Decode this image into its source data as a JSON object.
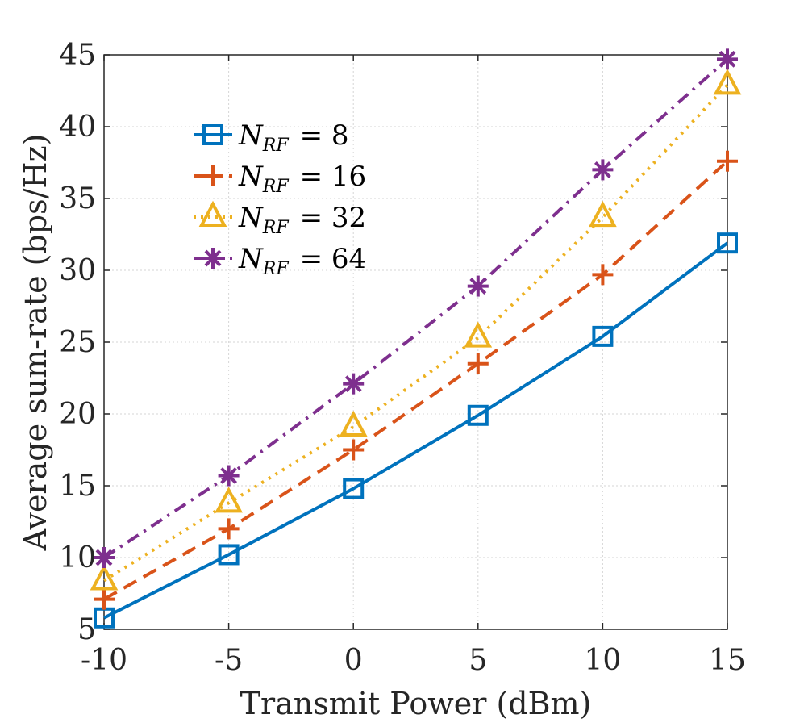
{
  "chart_data": {
    "type": "line",
    "xlabel": "Transmit Power (dBm)",
    "ylabel": "Average sum-rate (bps/Hz)",
    "x": [
      -10,
      -5,
      0,
      5,
      10,
      15
    ],
    "xlim": [
      -10,
      15
    ],
    "ylim": [
      5,
      45
    ],
    "xticks": [
      "-10",
      "-5",
      "0",
      "5",
      "10",
      "15"
    ],
    "yticks": [
      "5",
      "10",
      "15",
      "20",
      "25",
      "30",
      "35",
      "40",
      "45"
    ],
    "grid": true,
    "legend_position": "top-left",
    "series": [
      {
        "name": "N_RF = 8",
        "symbol": "N",
        "subscript": "RF",
        "rhs": "= 8",
        "color": "#0072bd",
        "line": "solid",
        "marker": "square",
        "values": [
          5.8,
          10.2,
          14.8,
          19.9,
          25.4,
          31.9
        ]
      },
      {
        "name": "N_RF = 16",
        "symbol": "N",
        "subscript": "RF",
        "rhs": "= 16",
        "color": "#d95319",
        "line": "dashed",
        "marker": "plus",
        "values": [
          7.1,
          12.0,
          17.5,
          23.5,
          29.7,
          37.6
        ]
      },
      {
        "name": "N_RF = 32",
        "symbol": "N",
        "subscript": "RF",
        "rhs": "= 32",
        "color": "#edb120",
        "line": "dotted",
        "marker": "triangle",
        "values": [
          8.4,
          13.8,
          19.1,
          25.3,
          33.7,
          42.9
        ]
      },
      {
        "name": "N_RF = 64",
        "symbol": "N",
        "subscript": "RF",
        "rhs": "= 64",
        "color": "#7e2f8e",
        "line": "dashdot",
        "marker": "asterisk",
        "values": [
          10.0,
          15.7,
          22.1,
          28.9,
          37.0,
          44.7
        ]
      }
    ]
  }
}
